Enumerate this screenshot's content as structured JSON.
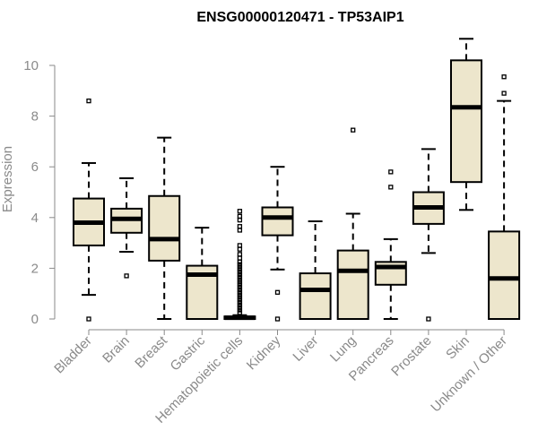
{
  "chart_data": {
    "type": "boxplot",
    "title": "ENSG00000120471 - TP53AIP1",
    "xlabel": "",
    "ylabel": "Expression",
    "ylim": [
      0,
      11
    ],
    "yticks": [
      "0",
      "2",
      "4",
      "6",
      "8",
      "10"
    ],
    "grid": false,
    "colors": {
      "box_fill": "#ede6cc",
      "box_stroke": "#000000",
      "median": "#000000",
      "axis": "#8a8a8a",
      "text": "#8a8a8a",
      "title": "#000000"
    },
    "categories": [
      "Bladder",
      "Brain",
      "Breast",
      "Gastric",
      "Hematopoietic cells",
      "Kidney",
      "Liver",
      "Lung",
      "Pancreas",
      "Prostate",
      "Skin",
      "Unknown / Other"
    ],
    "boxes": [
      {
        "name": "Bladder",
        "min": 0.95,
        "q1": 2.9,
        "median": 3.8,
        "q3": 4.75,
        "max": 6.15,
        "outliers": [
          8.6,
          0
        ]
      },
      {
        "name": "Brain",
        "min": 2.65,
        "q1": 3.4,
        "median": 3.95,
        "q3": 4.35,
        "max": 5.55,
        "outliers": [
          1.7
        ]
      },
      {
        "name": "Breast",
        "min": 0,
        "q1": 2.3,
        "median": 3.15,
        "q3": 4.85,
        "max": 7.15,
        "outliers": []
      },
      {
        "name": "Gastric",
        "min": 0,
        "q1": 0,
        "median": 1.75,
        "q3": 2.1,
        "max": 3.6,
        "outliers": []
      },
      {
        "name": "Hematopoietic cells",
        "min": 0,
        "q1": 0,
        "median": 0.05,
        "q3": 0.1,
        "max": 0.15,
        "outliers": [
          0.25,
          0.35,
          0.45,
          0.55,
          0.65,
          0.75,
          0.85,
          0.95,
          1.05,
          1.15,
          1.25,
          1.35,
          1.45,
          1.55,
          1.65,
          1.75,
          1.85,
          1.95,
          2.05,
          2.15,
          2.25,
          2.4,
          2.55,
          2.75,
          2.9,
          3.5,
          3.65,
          3.9,
          4.05,
          4.25
        ]
      },
      {
        "name": "Kidney",
        "min": 1.95,
        "q1": 3.3,
        "median": 4.0,
        "q3": 4.4,
        "max": 6.0,
        "outliers": [
          1.05,
          0
        ]
      },
      {
        "name": "Liver",
        "min": 0,
        "q1": 0,
        "median": 1.15,
        "q3": 1.8,
        "max": 3.85,
        "outliers": []
      },
      {
        "name": "Lung",
        "min": 0,
        "q1": 0,
        "median": 1.9,
        "q3": 2.7,
        "max": 4.15,
        "outliers": [
          7.45
        ]
      },
      {
        "name": "Pancreas",
        "min": 0,
        "q1": 1.35,
        "median": 2.05,
        "q3": 2.25,
        "max": 3.15,
        "outliers": [
          5.8,
          5.2
        ]
      },
      {
        "name": "Prostate",
        "min": 2.6,
        "q1": 3.75,
        "median": 4.4,
        "q3": 5.0,
        "max": 6.7,
        "outliers": [
          0
        ]
      },
      {
        "name": "Skin",
        "min": 4.3,
        "q1": 5.4,
        "median": 8.35,
        "q3": 10.2,
        "max": 11.05,
        "outliers": []
      },
      {
        "name": "Unknown / Other",
        "min": 0,
        "q1": 0,
        "median": 1.6,
        "q3": 3.45,
        "max": 8.6,
        "outliers": [
          9.55,
          8.9
        ]
      }
    ]
  }
}
